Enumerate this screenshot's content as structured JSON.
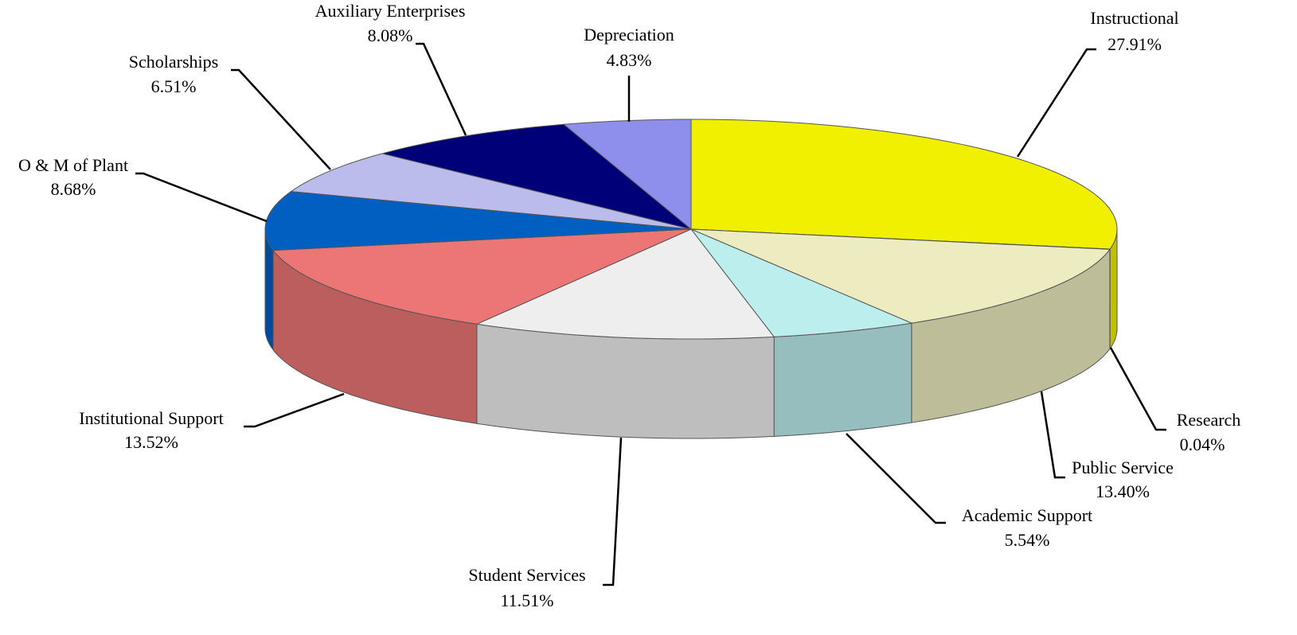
{
  "chart_data": {
    "type": "pie",
    "categories": [
      "Instructional",
      "Research",
      "Public Service",
      "Academic Support",
      "Student Services",
      "Institutional Support",
      "O & M of Plant",
      "Scholarships",
      "Auxiliary Enterprises",
      "Depreciation"
    ],
    "values": [
      27.91,
      0.04,
      13.4,
      5.54,
      11.51,
      13.52,
      8.68,
      6.51,
      8.08,
      4.83
    ],
    "value_labels": [
      "27.91%",
      "0.04%",
      "13.40%",
      "5.54%",
      "11.51%",
      "13.52%",
      "8.68%",
      "6.51%",
      "8.08%",
      "4.83%"
    ],
    "colors": [
      "#f0f000",
      "#808000",
      "#ececc0",
      "#bdeeee",
      "#eeeeee",
      "#ec7676",
      "#005fc0",
      "#bcbcec",
      "#000078",
      "#8e8eec"
    ]
  }
}
